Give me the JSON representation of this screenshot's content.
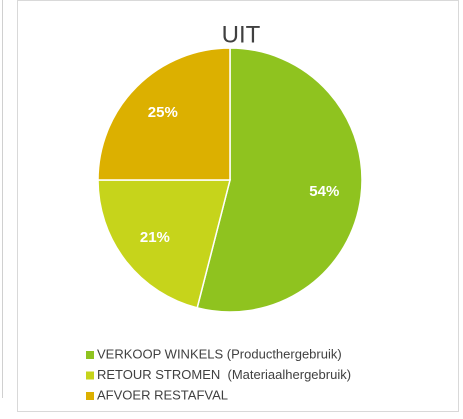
{
  "chart_data": {
    "type": "pie",
    "title": "UIT",
    "categories": [
      "VERKOOP WINKELS (Producthergebruik)",
      "RETOUR STROMEN  (Materiaalhergebruik)",
      "AFVOER RESTAFVAL"
    ],
    "values": [
      54,
      21,
      25
    ],
    "value_labels": [
      "54%",
      "21%",
      "25%"
    ],
    "colors": [
      "#8fc31f",
      "#c6d41b",
      "#dcb000"
    ],
    "legend": "bottom"
  }
}
